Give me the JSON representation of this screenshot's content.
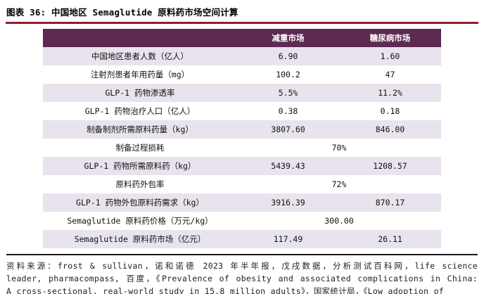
{
  "title": "图表 36: 中国地区 Semaglutide 原料药市场空间计算",
  "table": {
    "headers": [
      "",
      "减重市场",
      "糖尿病市场"
    ],
    "rows": [
      {
        "label": "中国地区患者人数（亿人）",
        "values": [
          "6.90",
          "1.60"
        ]
      },
      {
        "label": "注射剂患者年用药量（mg）",
        "values": [
          "100.2",
          "47"
        ]
      },
      {
        "label": "GLP-1 药物渗透率",
        "values": [
          "5.5%",
          "11.2%"
        ]
      },
      {
        "label": "GLP-1 药物治疗人口（亿人）",
        "values": [
          "0.38",
          "0.18"
        ]
      },
      {
        "label": "制备制剂所需原料药量（kg）",
        "values": [
          "3807.60",
          "846.00"
        ]
      },
      {
        "label": "制备过程损耗",
        "merged_value": "70%"
      },
      {
        "label": "GLP-1 药物所需原料药（kg）",
        "values": [
          "5439.43",
          "1208.57"
        ]
      },
      {
        "label": "原料药外包率",
        "merged_value": "72%"
      },
      {
        "label": "GLP-1 药物外包原料药需求（kg）",
        "values": [
          "3916.39",
          "870.17"
        ]
      },
      {
        "label": "Semaglutide 原料药价格（万元/kg）",
        "merged_value": "300.00"
      },
      {
        "label": "Semaglutide 原料药市场（亿元）",
        "values": [
          "117.49",
          "26.11"
        ]
      }
    ]
  },
  "source": {
    "line1": "资料来源：frost & sullivan，诺和诺德 2023 年半年报，戊戌数据，分析测试百科网，life science",
    "line2": "leader, pharmacompass, 百度，《Prevalence of obesity and associated complications in China:",
    "line3": "A cross-sectional, real-world study in 15.8 million adults》，国家统计局，《Low adoption of"
  },
  "colors": {
    "header_bg": "#5d2a51",
    "stripe_bg": "#e8e3ed",
    "title_rule": "#8e1d30",
    "divider": "#1a1a1a"
  }
}
